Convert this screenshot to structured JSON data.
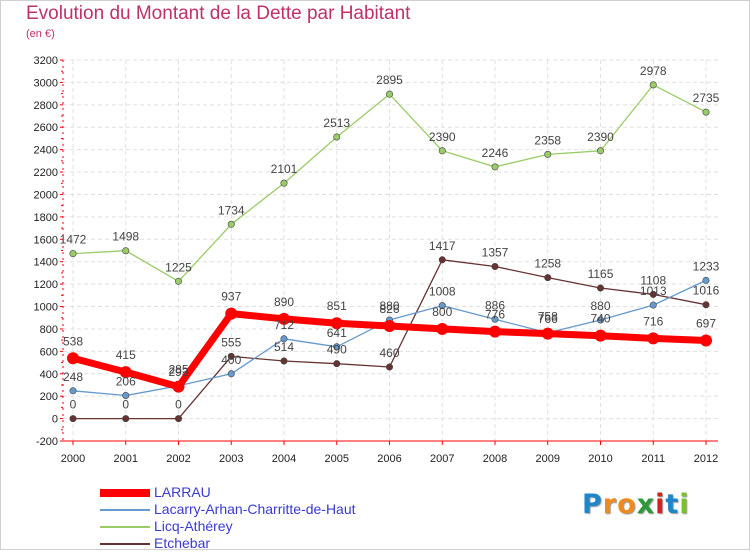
{
  "title": "Evolution du Montant de la Dette par Habitant",
  "subtitle": "(en €)",
  "logo": {
    "text": "Proxiti",
    "letters": [
      "P",
      "r",
      "o",
      "x",
      "i",
      "t",
      "i"
    ],
    "letter_colors": [
      "#1f86c8",
      "#f08a1c",
      "#f08a1c",
      "#2a9a3a",
      "#d82020",
      "#1f86c8",
      "#7cc02a"
    ]
  },
  "chart_data": {
    "type": "line",
    "x": [
      "2000",
      "2001",
      "2002",
      "2003",
      "2004",
      "2005",
      "2006",
      "2007",
      "2008",
      "2009",
      "2010",
      "2011",
      "2012"
    ],
    "ylim": [
      -200,
      3200
    ],
    "yticks": [
      "-200",
      "0",
      "200",
      "400",
      "600",
      "800",
      "1000",
      "1200",
      "1400",
      "1600",
      "1800",
      "2000",
      "2200",
      "2400",
      "2600",
      "2800",
      "3000",
      "3200"
    ],
    "grid": true,
    "legend_position": "bottom-left",
    "series": [
      {
        "name": "LARRAU",
        "color": "#ff0000",
        "values": [
          538,
          415,
          285,
          937,
          890,
          851,
          826,
          800,
          776,
          758,
          740,
          716,
          697
        ]
      },
      {
        "name": "Lacarry-Arhan-Charritte-de-Haut",
        "color": "#6699cc",
        "values": [
          248,
          206,
          293,
          400,
          712,
          641,
          880,
          1008,
          886,
          766,
          880,
          1013,
          1233
        ]
      },
      {
        "name": "Licq-Athérey",
        "color": "#99cc66",
        "values": [
          1472,
          1498,
          1225,
          1734,
          2101,
          2513,
          2895,
          2390,
          2246,
          2358,
          2390,
          2978,
          2735
        ]
      },
      {
        "name": "Etchebar",
        "color": "#663333",
        "values": [
          0,
          0,
          0,
          555,
          514,
          490,
          460,
          1417,
          1357,
          1258,
          1165,
          1108,
          1016
        ]
      }
    ]
  }
}
